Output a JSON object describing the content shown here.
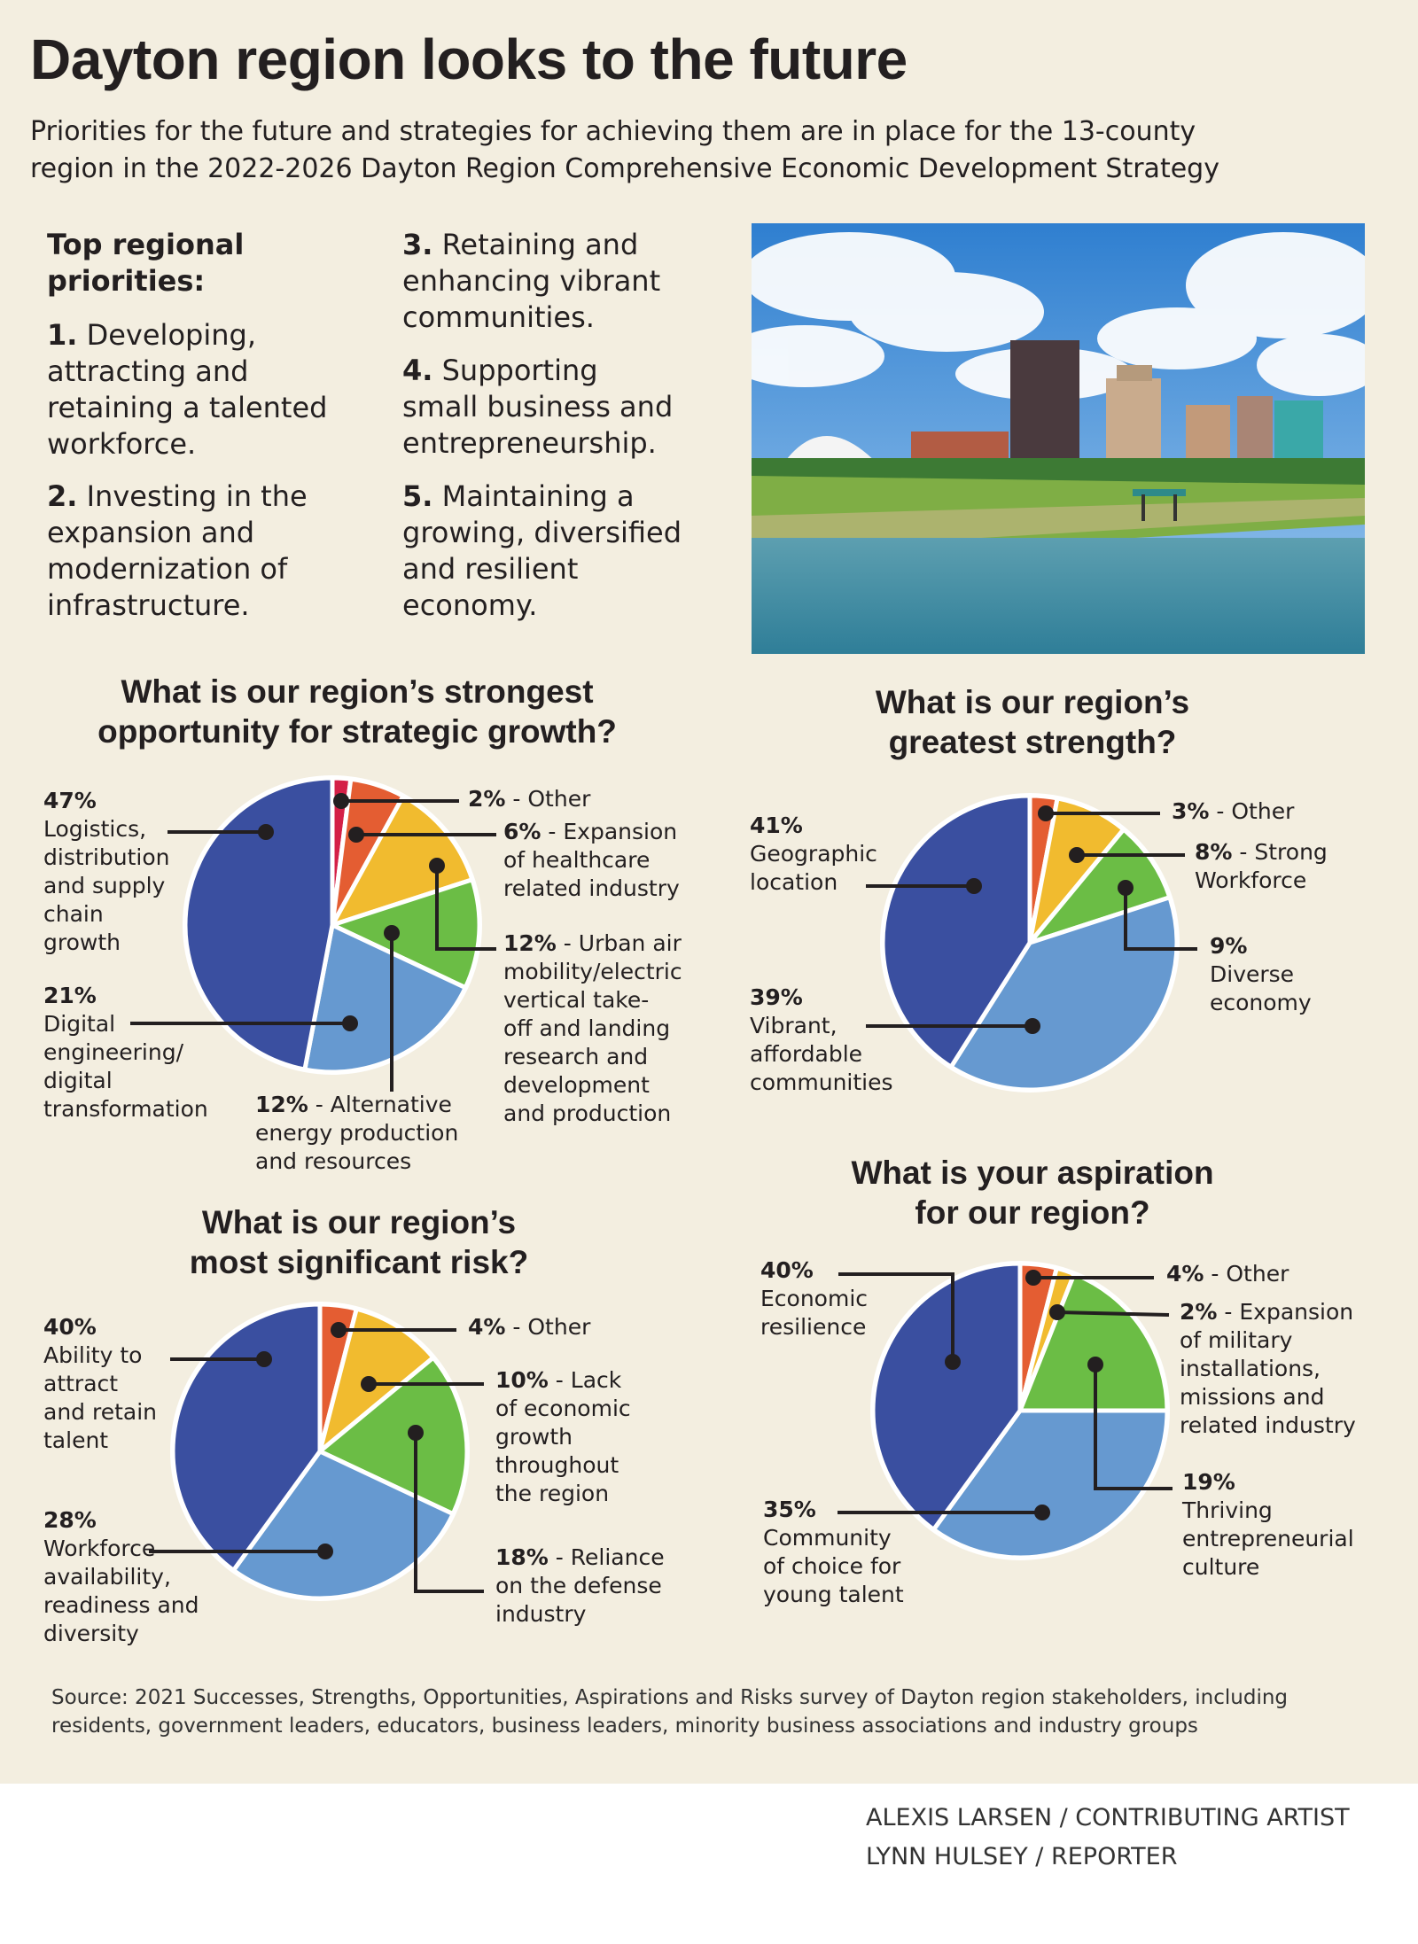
{
  "header": {
    "title": "Dayton region looks to the future",
    "subtitle_lines": [
      "Priorities for the future and strategies for achieving them are in place for the 13-county",
      "region in the 2022-2026 Dayton Region Comprehensive Economic Development Strategy"
    ]
  },
  "priorities": {
    "heading_lines": [
      "Top regional",
      "priorities:"
    ],
    "items": [
      {
        "num": "1.",
        "lines": [
          "Developing,",
          "attracting and",
          "retaining a talented",
          "workforce."
        ]
      },
      {
        "num": "2.",
        "lines": [
          "Investing in the",
          "expansion and",
          "modernization of",
          "infrastructure."
        ]
      },
      {
        "num": "3.",
        "lines": [
          "Retaining and",
          "enhancing vibrant",
          "communities."
        ]
      },
      {
        "num": "4.",
        "lines": [
          "Supporting",
          "small business and",
          "entrepreneurship."
        ]
      },
      {
        "num": "5.",
        "lines": [
          "Maintaining a",
          "growing, diversified",
          "and resilient",
          "economy."
        ]
      }
    ]
  },
  "colors": {
    "background": "#f3eee0",
    "dark_blue": "#3a4fa0",
    "light_blue": "#6699d0",
    "green": "#6bbd45",
    "yellow": "#f1bb2f",
    "orange": "#e45d32",
    "red": "#d42047"
  },
  "chart_data": [
    {
      "type": "pie",
      "title_lines": [
        "What is our region’s strongest",
        "opportunity for strategic growth?"
      ],
      "slices": [
        {
          "value": 2,
          "pct": "2%",
          "label_lines": [
            "- Other"
          ],
          "color": "#d42047"
        },
        {
          "value": 6,
          "pct": "6%",
          "label_lines": [
            "- Expansion",
            "of healthcare",
            "related industry"
          ],
          "color": "#e45d32"
        },
        {
          "value": 12,
          "pct": "12%",
          "label_lines": [
            "- Urban air",
            "mobility/electric",
            "vertical take-",
            "off and landing",
            "research and",
            "development",
            "and production"
          ],
          "color": "#f1bb2f"
        },
        {
          "value": 12,
          "pct": "12%",
          "label_lines": [
            "- Alternative",
            "energy production",
            "and resources"
          ],
          "color": "#6bbd45"
        },
        {
          "value": 21,
          "pct": "21%",
          "label_lines": [
            "Digital",
            "engineering/",
            "digital",
            "transformation"
          ],
          "color": "#6699d0"
        },
        {
          "value": 47,
          "pct": "47%",
          "label_lines": [
            "Logistics,",
            "distribution",
            "and supply",
            "chain",
            "growth"
          ],
          "color": "#3a4fa0"
        }
      ]
    },
    {
      "type": "pie",
      "title_lines": [
        "What is our region’s",
        "greatest strength?"
      ],
      "slices": [
        {
          "value": 3,
          "pct": "3%",
          "label_lines": [
            "- Other"
          ],
          "color": "#e45d32"
        },
        {
          "value": 8,
          "pct": "8%",
          "label_lines": [
            "- Strong",
            "Workforce"
          ],
          "color": "#f1bb2f"
        },
        {
          "value": 9,
          "pct": "9%",
          "label_lines": [
            "Diverse",
            "economy"
          ],
          "color": "#6bbd45"
        },
        {
          "value": 39,
          "pct": "39%",
          "label_lines": [
            "Vibrant,",
            "affordable",
            "communities"
          ],
          "color": "#6699d0"
        },
        {
          "value": 41,
          "pct": "41%",
          "label_lines": [
            "Geographic",
            "location"
          ],
          "color": "#3a4fa0"
        }
      ]
    },
    {
      "type": "pie",
      "title_lines": [
        "What is our region’s",
        "most significant risk?"
      ],
      "slices": [
        {
          "value": 4,
          "pct": "4%",
          "label_lines": [
            "- Other"
          ],
          "color": "#e45d32"
        },
        {
          "value": 10,
          "pct": "10%",
          "label_lines": [
            "- Lack",
            "of economic",
            "growth",
            "throughout",
            "the region"
          ],
          "color": "#f1bb2f"
        },
        {
          "value": 18,
          "pct": "18%",
          "label_lines": [
            "- Reliance",
            "on the defense",
            "industry"
          ],
          "color": "#6bbd45"
        },
        {
          "value": 28,
          "pct": "28%",
          "label_lines": [
            "Workforce",
            "availability,",
            "readiness and",
            "diversity"
          ],
          "color": "#6699d0"
        },
        {
          "value": 40,
          "pct": "40%",
          "label_lines": [
            "Ability to",
            "attract",
            "and retain",
            "talent"
          ],
          "color": "#3a4fa0"
        }
      ]
    },
    {
      "type": "pie",
      "title_lines": [
        "What is your aspiration",
        "for our region?"
      ],
      "slices": [
        {
          "value": 4,
          "pct": "4%",
          "label_lines": [
            "- Other"
          ],
          "color": "#e45d32"
        },
        {
          "value": 2,
          "pct": "2%",
          "label_lines": [
            "- Expansion",
            "of military",
            "installations,",
            "missions and",
            "related industry"
          ],
          "color": "#f1bb2f"
        },
        {
          "value": 19,
          "pct": "19%",
          "label_lines": [
            "Thriving",
            "entrepreneurial",
            "culture"
          ],
          "color": "#6bbd45"
        },
        {
          "value": 35,
          "pct": "35%",
          "label_lines": [
            "Community",
            "of choice for",
            "young talent"
          ],
          "color": "#6699d0"
        },
        {
          "value": 40,
          "pct": "40%",
          "label_lines": [
            "Economic",
            "resilience"
          ],
          "color": "#3a4fa0"
        }
      ]
    }
  ],
  "source_lines": [
    "Source: 2021 Successes, Strengths, Opportunities, Aspirations and Risks survey of Dayton region stakeholders, including",
    "residents, government leaders, educators, business leaders, minority business associations and industry groups"
  ],
  "credits": [
    "ALEXIS LARSEN / CONTRIBUTING ARTIST",
    "LYNN HULSEY / REPORTER"
  ]
}
